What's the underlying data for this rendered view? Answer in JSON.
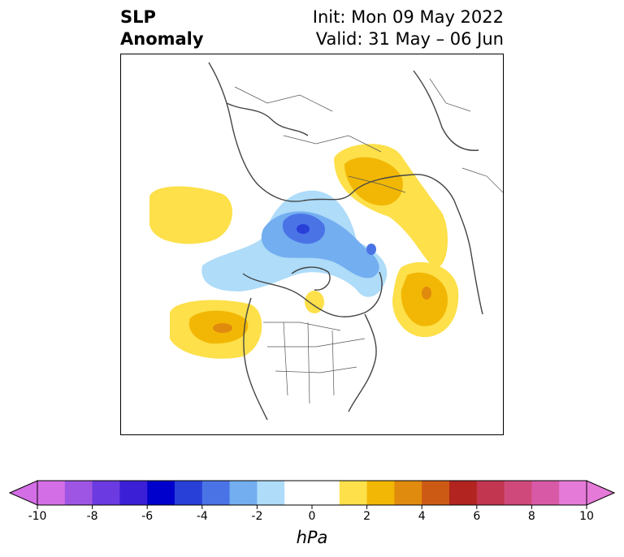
{
  "title": {
    "left_line1": "SLP",
    "left_line2": "Anomaly",
    "right_line1": "Init: Mon 09 May 2022",
    "right_line2": "Valid: 31 May – 06 Jun"
  },
  "colorbar": {
    "unit": "hPa",
    "ticks": [
      "-10",
      "-8",
      "-6",
      "-4",
      "-2",
      "0",
      "2",
      "4",
      "6",
      "8",
      "10"
    ],
    "colors": [
      "#d46ee6",
      "#9f55e3",
      "#6b3ae0",
      "#3b1fd6",
      "#0000cd",
      "#2840d8",
      "#4a74e6",
      "#73aef0",
      "#aedcf9",
      "#ffffff",
      "#ffffff",
      "#fde04a",
      "#f2b705",
      "#e08a0e",
      "#cd5a14",
      "#b2241f",
      "#c23650",
      "#cf4a7b",
      "#d85aa6",
      "#e67ad9"
    ],
    "extend": "both"
  },
  "map": {
    "projection": "polar-stereographic",
    "field": "sea-level-pressure-anomaly",
    "anomaly_regions": [
      {
        "name": "north-atlantic-positive",
        "sign": "positive"
      },
      {
        "name": "northeast-pacific-positive",
        "sign": "positive"
      },
      {
        "name": "siberia-positive",
        "sign": "positive"
      },
      {
        "name": "east-asia-positive",
        "sign": "positive"
      },
      {
        "name": "arctic-negative",
        "sign": "negative"
      }
    ]
  }
}
